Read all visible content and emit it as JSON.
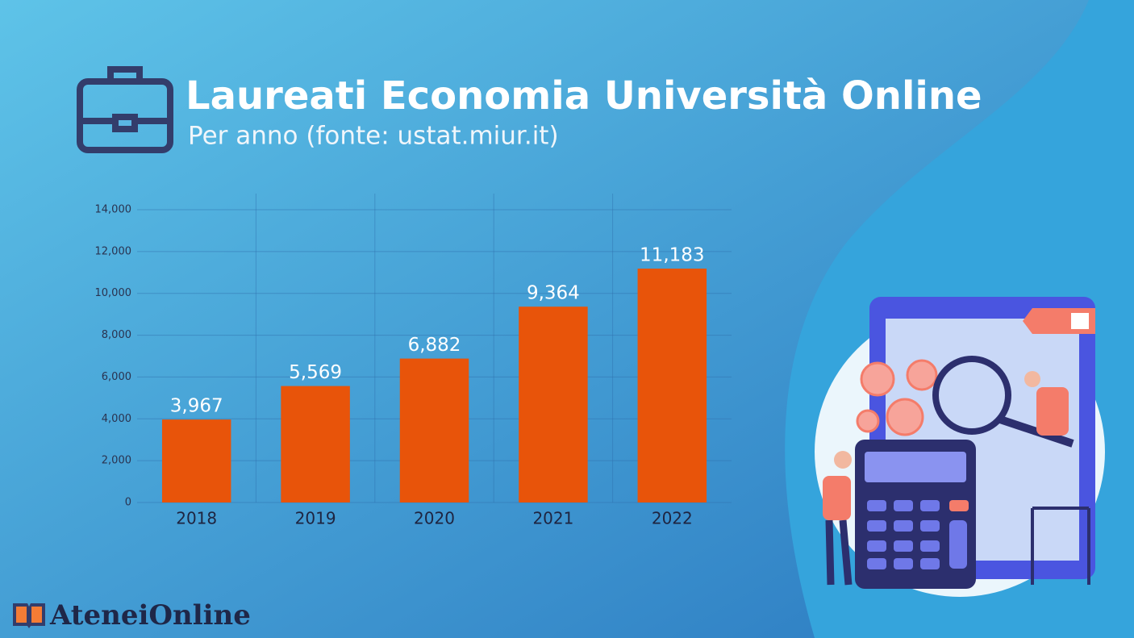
{
  "chart_data": {
    "type": "bar",
    "title": "Laureati Economia Università Online",
    "subtitle": "Per anno (fonte: ustat.miur.it)",
    "categories": [
      "2018",
      "2019",
      "2020",
      "2021",
      "2022"
    ],
    "values": [
      3967,
      5569,
      6882,
      9364,
      11183
    ],
    "value_labels": [
      "3,967",
      "5,569",
      "6,882",
      "9,364",
      "11,183"
    ],
    "color": "#e8540a",
    "ylim": [
      0,
      14000
    ],
    "yticks": [
      0,
      {
        "value": 2000,
        "label": "2,000"
      },
      {
        "value": 4000,
        "label": "4,000"
      },
      {
        "value": 6000,
        "label": "6,000"
      },
      {
        "value": 8000,
        "label": "8,000"
      },
      {
        "value": 10000,
        "label": "10,000"
      },
      {
        "value": 12000,
        "label": "12,000"
      },
      {
        "value": 14000,
        "label": "14,000"
      }
    ],
    "grid": true
  },
  "brand": "AteneiOnline"
}
